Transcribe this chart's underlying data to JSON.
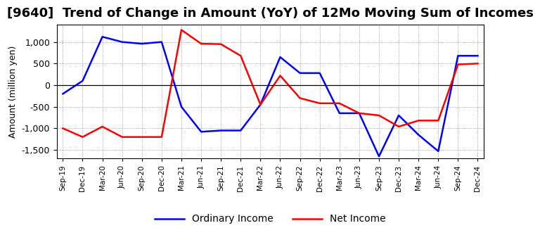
{
  "title": "[9640]  Trend of Change in Amount (YoY) of 12Mo Moving Sum of Incomes",
  "ylabel": "Amount (million yen)",
  "x_labels": [
    "Sep-19",
    "Dec-19",
    "Mar-20",
    "Jun-20",
    "Sep-20",
    "Dec-20",
    "Mar-21",
    "Jun-21",
    "Sep-21",
    "Dec-21",
    "Mar-22",
    "Jun-22",
    "Sep-22",
    "Dec-22",
    "Mar-23",
    "Jun-23",
    "Sep-23",
    "Dec-23",
    "Mar-24",
    "Jun-24",
    "Sep-24",
    "Dec-24"
  ],
  "ordinary_income": [
    -200,
    100,
    1120,
    1000,
    960,
    1000,
    -500,
    -1080,
    -1050,
    -1050,
    -450,
    650,
    280,
    280,
    -650,
    -650,
    -1650,
    -700,
    -1150,
    -1530,
    680,
    680
  ],
  "net_income": [
    -1000,
    -1200,
    -960,
    -1200,
    -1200,
    -1200,
    1280,
    960,
    950,
    680,
    -450,
    220,
    -300,
    -420,
    -420,
    -650,
    -700,
    -960,
    -820,
    -820,
    480,
    500
  ],
  "ordinary_color": "#0000FF",
  "net_color": "#FF0000",
  "background_color": "#FFFFFF",
  "grid_color": "#888888",
  "ylim": [
    -1700,
    1400
  ],
  "yticks": [
    -1500,
    -1000,
    -500,
    0,
    500,
    1000
  ],
  "title_fontsize": 13,
  "legend_labels": [
    "Ordinary Income",
    "Net Income"
  ],
  "line_width": 1.8
}
